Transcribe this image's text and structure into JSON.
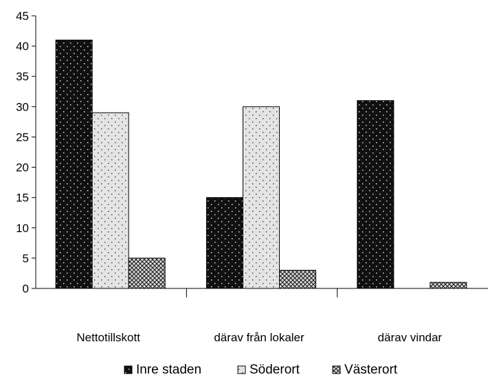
{
  "chart_data": {
    "type": "bar",
    "categories": [
      "Nettotillskott",
      "därav från lokaler",
      "därav vindar"
    ],
    "series": [
      {
        "name": "Inre staden",
        "values": [
          41,
          15,
          31
        ],
        "pattern": "dark-dots"
      },
      {
        "name": "Söderort",
        "values": [
          29,
          30,
          0
        ],
        "pattern": "light-dots"
      },
      {
        "name": "Västerort",
        "values": [
          5,
          3,
          1
        ],
        "pattern": "crosshatch"
      }
    ],
    "ylim": [
      0,
      45
    ],
    "yticks": [
      0,
      5,
      10,
      15,
      20,
      25,
      30,
      35,
      40,
      45
    ],
    "grid": false,
    "legend": "bottom"
  }
}
